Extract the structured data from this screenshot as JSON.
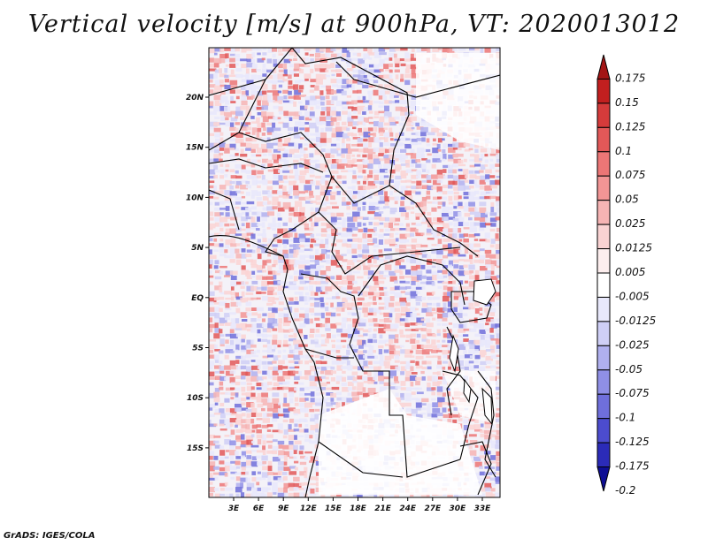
{
  "title": "Vertical velocity [m/s] at 900hPa, VT: 2020013012",
  "footer": "GrADS: IGES/COLA",
  "map": {
    "lon_ticks": [
      "3E",
      "6E",
      "9E",
      "12E",
      "15E",
      "18E",
      "21E",
      "24E",
      "27E",
      "30E",
      "33E"
    ],
    "lat_ticks": [
      "20N",
      "15N",
      "10N",
      "5N",
      "EQ",
      "5S",
      "10S",
      "15S"
    ]
  },
  "colorbar": {
    "levels": [
      "0.175",
      "0.15",
      "0.125",
      "0.1",
      "0.075",
      "0.05",
      "0.025",
      "0.0125",
      "0.005",
      "-0.005",
      "-0.0125",
      "-0.025",
      "-0.05",
      "-0.075",
      "-0.1",
      "-0.125",
      "-0.175",
      "-0.2"
    ],
    "colors": [
      "#a31515",
      "#c21f1f",
      "#d53b3b",
      "#e25858",
      "#ec7676",
      "#f29595",
      "#f6b4b4",
      "#fad3d3",
      "#fdeeee",
      "#ffffff",
      "#e8e8fb",
      "#cfcff6",
      "#b0b0ef",
      "#8f8fe6",
      "#6f6fdb",
      "#4c4cce",
      "#2b2bb8",
      "#0e0e94"
    ]
  }
}
